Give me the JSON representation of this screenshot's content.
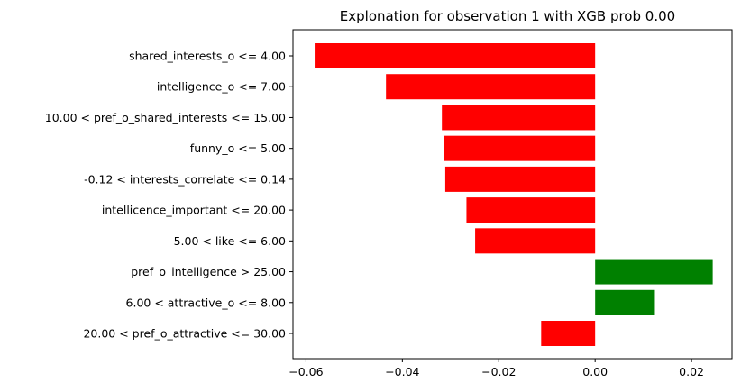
{
  "chart_data": {
    "type": "bar",
    "orientation": "horizontal",
    "title": "Explonation for observation 1 with XGB prob 0.00",
    "xlabel": "",
    "ylabel": "",
    "xlim": [
      -0.0627,
      0.0284
    ],
    "x_ticks": [
      -0.06,
      -0.04,
      -0.02,
      0.0,
      0.02
    ],
    "x_tick_labels": [
      "−0.06",
      "−0.04",
      "−0.02",
      "0.00",
      "0.02"
    ],
    "grid": false,
    "legend": "none",
    "categories": [
      "shared_interests_o <= 4.00",
      "intelligence_o <= 7.00",
      "10.00 < pref_o_shared_interests <= 15.00",
      "funny_o <= 5.00",
      "-0.12 < interests_correlate <= 0.14",
      "intellicence_important <= 20.00",
      "5.00 < like <= 6.00",
      "pref_o_intelligence > 25.00",
      "6.00 < attractive_o <= 8.00",
      "20.00 < pref_o_attractive <= 30.00"
    ],
    "values": [
      -0.0582,
      -0.0434,
      -0.0318,
      -0.0314,
      -0.0311,
      -0.0267,
      -0.0249,
      0.0244,
      0.0124,
      -0.0112
    ],
    "colors": {
      "negative": "#ff0000",
      "positive": "#008000"
    }
  }
}
